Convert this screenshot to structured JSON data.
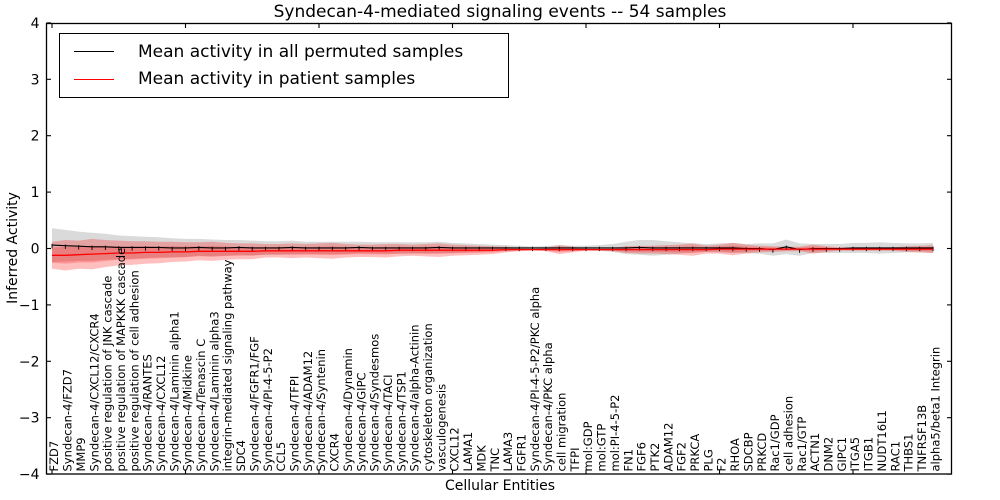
{
  "chart_data": {
    "type": "line",
    "title": "Syndecan-4-mediated signaling events -- 54 samples",
    "xlabel": "Cellular Entities",
    "ylabel": "Inferred Activity",
    "ylim": [
      -4,
      4
    ],
    "grid": false,
    "legend_position": "upper left",
    "background_color": "#ffffff",
    "yticks": [
      {
        "v": 4,
        "label": "4"
      },
      {
        "v": 3,
        "label": "3"
      },
      {
        "v": 2,
        "label": "2"
      },
      {
        "v": 1,
        "label": "1"
      },
      {
        "v": 0,
        "label": "0"
      },
      {
        "v": -1,
        "label": "−1"
      },
      {
        "v": -2,
        "label": "−2"
      },
      {
        "v": -3,
        "label": "−3"
      },
      {
        "v": -4,
        "label": "−4"
      }
    ],
    "xtick_positions": [
      0,
      10,
      20,
      30,
      40,
      50,
      60
    ],
    "categories": [
      "FZD7",
      "Syndecan-4/FZD7",
      "MMP9",
      "Syndecan-4/CXCL12/CXCR4",
      "positive regulation of JNK cascade",
      "positive regulation of MAPKKK cascade",
      "positive regulation of cell adhesion",
      "Syndecan-4/RANTES",
      "Syndecan-4/CXCL12",
      "Syndecan-4/Laminin alpha1",
      "Syndecan-4/Midkine",
      "Syndecan-4/Tenascin C",
      "Syndecan-4/Laminin alpha3",
      "integrin-mediated signaling pathway",
      "SDC4",
      "Syndecan-4/FGFR1/FGF",
      "Syndecan-4/PI-4-5-P2",
      "CCL5",
      "Syndecan-4/TFPI",
      "Syndecan-4/ADAM12",
      "Syndecan-4/Syntenin",
      "CXCR4",
      "Syndecan-4/Dynamin",
      "Syndecan-4/GIPC",
      "Syndecan-4/Syndesmos",
      "Syndecan-4/TACI",
      "Syndecan-4/TSP1",
      "Syndecan-4/alpha-Actinin",
      "cytoskeleton organization",
      "vasculogenesis",
      "CXCL12",
      "LAMA1",
      "MDK",
      "TNC",
      "LAMA3",
      "FGFR1",
      "Syndecan-4/PI-4-5-P2/PKC alpha",
      "Syndecan-4/PKC alpha",
      "cell migration",
      "TFPI",
      "mol:GDP",
      "mol:GTP",
      "mol:PI-4-5-P2",
      "FN1",
      "FGF6",
      "PTK2",
      "ADAM12",
      "FGF2",
      "PRKCA",
      "PLG",
      "F2",
      "RHOA",
      "SDCBP",
      "PRKCD",
      "Rac1/GDP",
      "cell adhesion",
      "Rac1/GTP",
      "ACTN1",
      "DNM2",
      "GIPC1",
      "ITGA5",
      "ITGB1",
      "NUDT16L1",
      "RAC1",
      "THBS1",
      "TNFRSF13B",
      "alpha5/beta1 Integrin"
    ],
    "series": [
      {
        "name": "Mean activity in all permuted samples",
        "color": "#000000",
        "band_color": "#bbbbbb",
        "mean": [
          0.06,
          0.05,
          0.04,
          0.03,
          0.03,
          0.02,
          0.02,
          0.02,
          0.02,
          0.01,
          0.01,
          0.02,
          0.01,
          0.01,
          0.02,
          0.01,
          0.01,
          0.01,
          0.02,
          0.01,
          0.01,
          0.01,
          0.01,
          0.02,
          0.01,
          0.01,
          0.01,
          0.01,
          0.01,
          0.02,
          0.01,
          0.01,
          0.01,
          0.01,
          0.01,
          0.01,
          0.01,
          0.01,
          0.01,
          0.01,
          0.01,
          0.01,
          0.01,
          0.01,
          0.02,
          0.01,
          0.01,
          0.01,
          0.01,
          0.01,
          0.01,
          0.01,
          0.0,
          0.0,
          -0.02,
          0.03,
          -0.02,
          0.0,
          0.0,
          0.0,
          0.01,
          0.01,
          0.01,
          0.01,
          0.01,
          0.01,
          0.01
        ],
        "band_halfwidth": [
          0.3,
          0.28,
          0.26,
          0.25,
          0.23,
          0.21,
          0.2,
          0.19,
          0.18,
          0.17,
          0.16,
          0.15,
          0.15,
          0.14,
          0.13,
          0.13,
          0.12,
          0.12,
          0.12,
          0.11,
          0.11,
          0.11,
          0.11,
          0.1,
          0.1,
          0.1,
          0.1,
          0.1,
          0.1,
          0.1,
          0.09,
          0.08,
          0.07,
          0.06,
          0.05,
          0.04,
          0.025,
          0.035,
          0.05,
          0.04,
          0.04,
          0.05,
          0.07,
          0.11,
          0.13,
          0.14,
          0.12,
          0.1,
          0.08,
          0.07,
          0.08,
          0.09,
          0.08,
          0.09,
          0.11,
          0.13,
          0.11,
          0.08,
          0.08,
          0.08,
          0.09,
          0.09,
          0.1,
          0.09,
          0.08,
          0.08,
          0.09
        ]
      },
      {
        "name": "Mean activity in patient samples",
        "color": "#ff0000",
        "band_color": "#ff0000",
        "mean": [
          -0.12,
          -0.12,
          -0.11,
          -0.1,
          -0.09,
          -0.08,
          -0.08,
          -0.07,
          -0.07,
          -0.06,
          -0.06,
          -0.05,
          -0.05,
          -0.05,
          -0.05,
          -0.05,
          -0.04,
          -0.04,
          -0.04,
          -0.04,
          -0.04,
          -0.04,
          -0.04,
          -0.04,
          -0.04,
          -0.04,
          -0.03,
          -0.03,
          -0.03,
          -0.03,
          -0.03,
          -0.03,
          -0.03,
          -0.03,
          -0.02,
          -0.02,
          -0.02,
          -0.02,
          -0.02,
          -0.02,
          -0.02,
          -0.02,
          -0.02,
          -0.02,
          -0.02,
          -0.02,
          -0.02,
          -0.02,
          -0.02,
          -0.02,
          -0.01,
          -0.01,
          -0.01,
          -0.01,
          -0.01,
          -0.01,
          -0.01,
          -0.01,
          -0.01,
          -0.01,
          -0.01,
          -0.01,
          -0.01,
          -0.01,
          -0.01,
          -0.01,
          -0.01
        ],
        "band_halfwidth": [
          0.24,
          0.27,
          0.25,
          0.27,
          0.24,
          0.22,
          0.21,
          0.2,
          0.19,
          0.18,
          0.17,
          0.16,
          0.17,
          0.15,
          0.14,
          0.14,
          0.12,
          0.12,
          0.13,
          0.12,
          0.13,
          0.14,
          0.12,
          0.11,
          0.11,
          0.12,
          0.11,
          0.1,
          0.11,
          0.12,
          0.1,
          0.09,
          0.08,
          0.07,
          0.05,
          0.03,
          0.015,
          0.03,
          0.08,
          0.05,
          0.02,
          0.02,
          0.03,
          0.06,
          0.07,
          0.07,
          0.08,
          0.09,
          0.11,
          0.07,
          0.08,
          0.11,
          0.08,
          0.06,
          0.05,
          0.04,
          0.04,
          0.08,
          0.05,
          0.03,
          0.03,
          0.03,
          0.03,
          0.03,
          0.05,
          0.06,
          0.07
        ]
      }
    ]
  }
}
